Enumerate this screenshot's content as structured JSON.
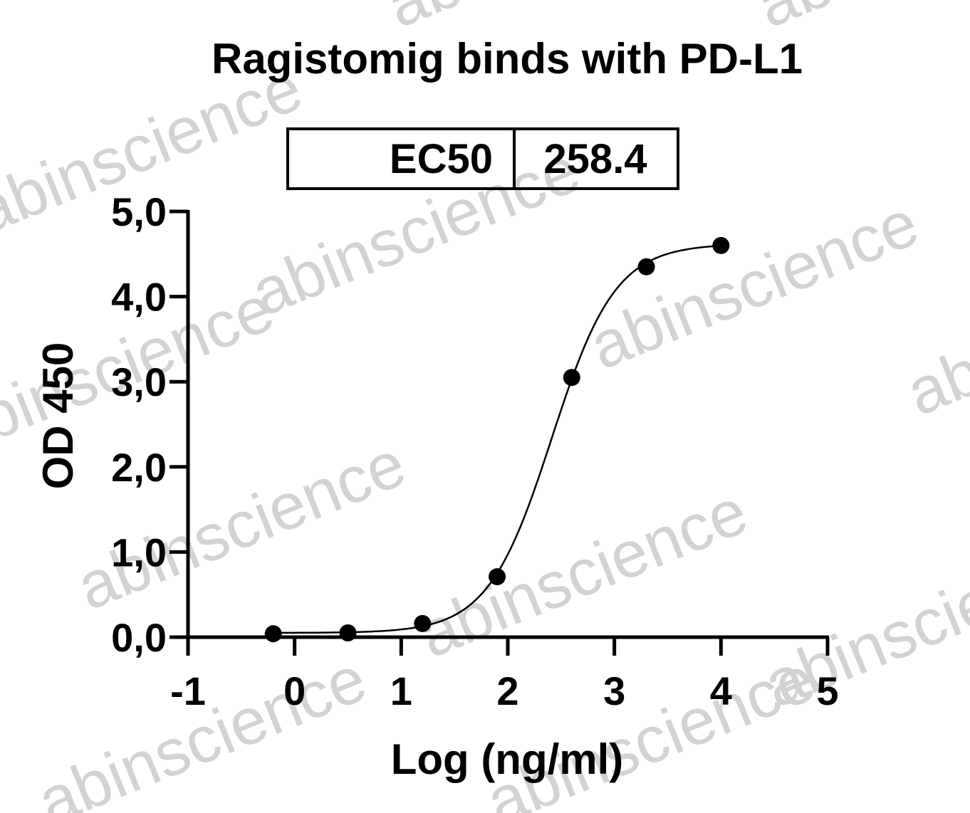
{
  "chart_data": {
    "type": "scatter",
    "title": "Ragistomig binds with PD-L1",
    "xlabel": "Log (ng/ml)",
    "ylabel": "OD 450",
    "xlim": [
      -1,
      5
    ],
    "ylim": [
      0,
      5
    ],
    "x_ticks": [
      -1,
      0,
      1,
      2,
      3,
      4,
      5
    ],
    "x_tick_labels": [
      "-1",
      "0",
      "1",
      "2",
      "3",
      "4",
      "5"
    ],
    "y_ticks": [
      0,
      1,
      2,
      3,
      4,
      5
    ],
    "y_tick_labels": [
      "0,0",
      "1,0",
      "2,0",
      "3,0",
      "4,0",
      "5,0"
    ],
    "grid": false,
    "series": [
      {
        "x": [
          -0.2,
          0.5,
          1.2,
          1.9,
          2.6,
          3.3,
          4.0
        ],
        "y": [
          0.04,
          0.05,
          0.16,
          0.71,
          3.05,
          4.35,
          4.6
        ]
      }
    ],
    "fit_curve": {
      "model": "four-parameter logistic",
      "bottom": 0.05,
      "top": 4.62,
      "log_ec50": 2.412,
      "hill_slope": 1.45
    },
    "ec50_table": {
      "label": "EC50",
      "value": "258.4"
    },
    "watermark": "abinscience"
  }
}
